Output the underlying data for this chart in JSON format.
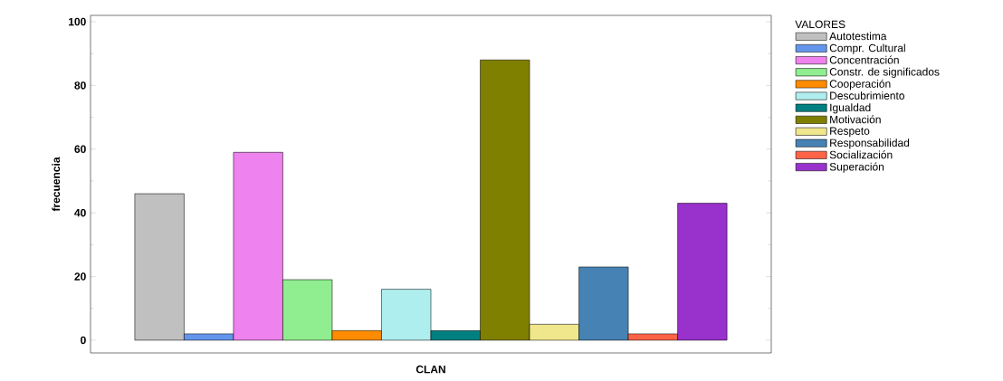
{
  "chart_data": {
    "type": "bar",
    "xlabel": "CLAN",
    "ylabel": "frecuencia",
    "legend_title": "VALORES",
    "legend": "right",
    "categories": [
      null
    ],
    "ylim": [
      -4,
      102
    ],
    "yticks": [
      0,
      20,
      40,
      60,
      80,
      100
    ],
    "series": [
      {
        "name": "Autotestima",
        "color": "#c0c0c0",
        "values": [
          46
        ]
      },
      {
        "name": "Compr. Cultural",
        "color": "#6495ed",
        "values": [
          2
        ]
      },
      {
        "name": "Concentración",
        "color": "#ee82ee",
        "values": [
          59
        ]
      },
      {
        "name": "Constr. de significados",
        "color": "#90ee90",
        "values": [
          19
        ]
      },
      {
        "name": "Cooperación",
        "color": "#ff8c00",
        "values": [
          3
        ]
      },
      {
        "name": "Descubrimiento",
        "color": "#afeeee",
        "values": [
          16
        ]
      },
      {
        "name": "Igualdad",
        "color": "#008080",
        "values": [
          3
        ]
      },
      {
        "name": "Motivación",
        "color": "#808000",
        "values": [
          88
        ]
      },
      {
        "name": "Respeto",
        "color": "#f0e68c",
        "values": [
          5
        ]
      },
      {
        "name": "Responsabilidad",
        "color": "#4682b4",
        "values": [
          23
        ]
      },
      {
        "name": "Socialización",
        "color": "#ff6347",
        "values": [
          2
        ]
      },
      {
        "name": "Superación",
        "color": "#9932cc",
        "values": [
          43
        ]
      }
    ]
  }
}
